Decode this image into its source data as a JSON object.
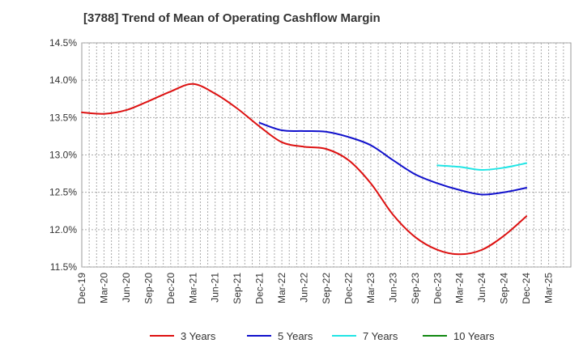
{
  "chart_data": {
    "type": "line",
    "title": "[3788]  Trend of Mean of Operating Cashflow Margin",
    "xlabel": "",
    "ylabel": "",
    "ylim": [
      11.5,
      14.5
    ],
    "y_ticks": [
      "11.5%",
      "12.0%",
      "12.5%",
      "13.0%",
      "13.5%",
      "14.0%",
      "14.5%"
    ],
    "y_tick_values": [
      11.5,
      12.0,
      12.5,
      13.0,
      13.5,
      14.0,
      14.5
    ],
    "x_tick_labels": [
      "Dec-19",
      "Mar-20",
      "Jun-20",
      "Sep-20",
      "Dec-20",
      "Mar-21",
      "Jun-21",
      "Sep-21",
      "Dec-21",
      "Mar-22",
      "Jun-22",
      "Sep-22",
      "Dec-22",
      "Mar-23",
      "Jun-23",
      "Sep-23",
      "Dec-23",
      "Mar-24",
      "Jun-24",
      "Sep-24",
      "Dec-24",
      "Mar-25"
    ],
    "grid": true,
    "legend_position": "bottom",
    "series": [
      {
        "name": "3 Years",
        "color": "#dd1111",
        "values": [
          13.57,
          13.55,
          13.6,
          13.72,
          13.85,
          13.95,
          13.82,
          13.62,
          13.38,
          13.17,
          13.11,
          13.08,
          12.93,
          12.62,
          12.2,
          11.9,
          11.73,
          11.67,
          11.73,
          11.92,
          12.18
        ]
      },
      {
        "name": "5 Years",
        "color": "#1111cc",
        "values": [
          null,
          null,
          null,
          null,
          null,
          null,
          null,
          null,
          13.43,
          13.33,
          13.32,
          13.31,
          13.24,
          13.13,
          12.93,
          12.74,
          12.62,
          12.53,
          12.47,
          12.5,
          12.56
        ]
      },
      {
        "name": "7 Years",
        "color": "#22e5e5",
        "values": [
          null,
          null,
          null,
          null,
          null,
          null,
          null,
          null,
          null,
          null,
          null,
          null,
          null,
          null,
          null,
          null,
          12.86,
          12.84,
          12.8,
          12.83,
          12.89
        ]
      },
      {
        "name": "10 Years",
        "color": "#118811",
        "values": [
          null,
          null,
          null,
          null,
          null,
          null,
          null,
          null,
          null,
          null,
          null,
          null,
          null,
          null,
          null,
          null,
          null,
          null,
          null,
          null,
          null
        ]
      }
    ]
  }
}
